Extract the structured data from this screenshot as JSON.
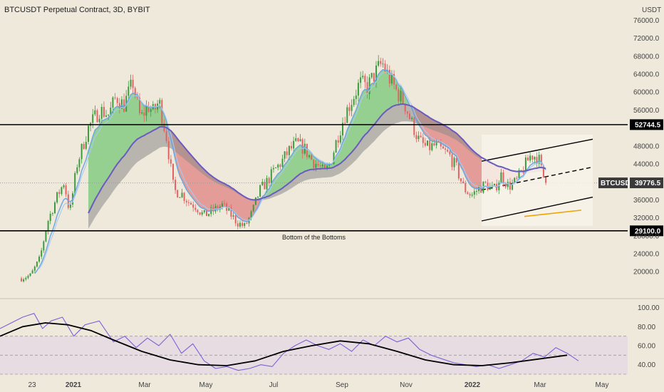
{
  "chart_data": {
    "type": "candlestick",
    "title": "BTCUSDT Perpetual Contract, 3D, BYBIT",
    "currency": "USDT",
    "ticker": "BTCUSDT",
    "last_price": "39776.5",
    "price_axis": {
      "ylim": [
        14000,
        80500
      ],
      "ticks": [
        "76000.0",
        "72000.0",
        "68000.0",
        "64000.0",
        "60000.0",
        "56000.0",
        "48000.0",
        "44000.0",
        "36000.0",
        "32000.0",
        "28000.0",
        "24000.0",
        "20000.0"
      ]
    },
    "levels": [
      {
        "label": "52744.5",
        "value": 52744.5
      },
      {
        "label": "29100.0",
        "value": 29100
      }
    ],
    "annotation": "Bottom of the Bottoms",
    "x_axis_labels": [
      "23",
      "2021",
      "Mar",
      "May",
      "Jul",
      "Sep",
      "Nov",
      "2022",
      "Mar",
      "May"
    ],
    "price_path": [
      {
        "t": 0.0,
        "p": 18500
      },
      {
        "t": 0.05,
        "p": 19200
      },
      {
        "t": 0.1,
        "p": 23000
      },
      {
        "t": 0.14,
        "p": 31000
      },
      {
        "t": 0.19,
        "p": 36500
      },
      {
        "t": 0.23,
        "p": 40000
      },
      {
        "t": 0.26,
        "p": 33000
      },
      {
        "t": 0.3,
        "p": 44000
      },
      {
        "t": 0.36,
        "p": 52000
      },
      {
        "t": 0.42,
        "p": 56000
      },
      {
        "t": 0.47,
        "p": 55000
      },
      {
        "t": 0.51,
        "p": 59000
      },
      {
        "t": 0.55,
        "p": 57000
      },
      {
        "t": 0.6,
        "p": 62000
      },
      {
        "t": 0.64,
        "p": 54000
      },
      {
        "t": 0.68,
        "p": 57000
      },
      {
        "t": 0.71,
        "p": 55500
      },
      {
        "t": 0.74,
        "p": 58000
      },
      {
        "t": 0.78,
        "p": 50000
      },
      {
        "t": 0.82,
        "p": 38000
      },
      {
        "t": 0.86,
        "p": 37500
      },
      {
        "t": 0.9,
        "p": 35500
      },
      {
        "t": 0.94,
        "p": 34500
      },
      {
        "t": 0.98,
        "p": 32500
      },
      {
        "t": 1.03,
        "p": 33500
      },
      {
        "t": 1.08,
        "p": 34800
      },
      {
        "t": 1.12,
        "p": 33000
      },
      {
        "t": 1.16,
        "p": 31000
      },
      {
        "t": 1.2,
        "p": 30000
      },
      {
        "t": 1.24,
        "p": 33000
      },
      {
        "t": 1.28,
        "p": 38000
      },
      {
        "t": 1.32,
        "p": 40000
      },
      {
        "t": 1.36,
        "p": 42500
      },
      {
        "t": 1.4,
        "p": 44500
      },
      {
        "t": 1.44,
        "p": 47000
      },
      {
        "t": 1.48,
        "p": 48500
      },
      {
        "t": 1.52,
        "p": 47500
      },
      {
        "t": 1.56,
        "p": 45000
      },
      {
        "t": 1.6,
        "p": 43500
      },
      {
        "t": 1.63,
        "p": 42000
      },
      {
        "t": 1.66,
        "p": 44000
      },
      {
        "t": 1.7,
        "p": 50000
      },
      {
        "t": 1.74,
        "p": 55000
      },
      {
        "t": 1.78,
        "p": 58500
      },
      {
        "t": 1.82,
        "p": 62000
      },
      {
        "t": 1.86,
        "p": 61000
      },
      {
        "t": 1.9,
        "p": 64000
      },
      {
        "t": 1.94,
        "p": 66500
      },
      {
        "t": 1.98,
        "p": 63000
      },
      {
        "t": 2.02,
        "p": 60000
      },
      {
        "t": 2.06,
        "p": 57500
      },
      {
        "t": 2.1,
        "p": 53000
      },
      {
        "t": 2.14,
        "p": 49000
      },
      {
        "t": 2.18,
        "p": 47500
      },
      {
        "t": 2.22,
        "p": 48000
      },
      {
        "t": 2.26,
        "p": 47000
      },
      {
        "t": 2.3,
        "p": 46000
      },
      {
        "t": 2.34,
        "p": 43000
      },
      {
        "t": 2.38,
        "p": 38500
      },
      {
        "t": 2.42,
        "p": 37000
      },
      {
        "t": 2.46,
        "p": 38500
      },
      {
        "t": 2.5,
        "p": 39500
      },
      {
        "t": 2.54,
        "p": 38000
      },
      {
        "t": 2.58,
        "p": 41500
      },
      {
        "t": 2.62,
        "p": 39000
      },
      {
        "t": 2.66,
        "p": 40000
      },
      {
        "t": 2.7,
        "p": 43000
      },
      {
        "t": 2.74,
        "p": 46000
      },
      {
        "t": 2.78,
        "p": 45500
      },
      {
        "t": 2.8,
        "p": 42000
      },
      {
        "t": 2.82,
        "p": 39776.5
      }
    ],
    "rsi_axis": {
      "ylim": [
        30,
        105
      ],
      "ticks": [
        "100.00",
        "80.00",
        "60.00",
        "40.00"
      ],
      "band": [
        30,
        70
      ],
      "midline": 50
    },
    "rsi_path": [
      {
        "t": 0.0,
        "p": 78
      },
      {
        "t": 0.04,
        "p": 84
      },
      {
        "t": 0.08,
        "p": 90
      },
      {
        "t": 0.12,
        "p": 94
      },
      {
        "t": 0.15,
        "p": 78
      },
      {
        "t": 0.18,
        "p": 86
      },
      {
        "t": 0.22,
        "p": 90
      },
      {
        "t": 0.26,
        "p": 70
      },
      {
        "t": 0.3,
        "p": 82
      },
      {
        "t": 0.35,
        "p": 86
      },
      {
        "t": 0.4,
        "p": 64
      },
      {
        "t": 0.44,
        "p": 70
      },
      {
        "t": 0.48,
        "p": 58
      },
      {
        "t": 0.52,
        "p": 68
      },
      {
        "t": 0.56,
        "p": 60
      },
      {
        "t": 0.6,
        "p": 72
      },
      {
        "t": 0.64,
        "p": 52
      },
      {
        "t": 0.68,
        "p": 62
      },
      {
        "t": 0.72,
        "p": 44
      },
      {
        "t": 0.76,
        "p": 36
      },
      {
        "t": 0.8,
        "p": 38
      },
      {
        "t": 0.84,
        "p": 34
      },
      {
        "t": 0.88,
        "p": 36
      },
      {
        "t": 0.92,
        "p": 40
      },
      {
        "t": 0.96,
        "p": 38
      },
      {
        "t": 1.0,
        "p": 52
      },
      {
        "t": 1.04,
        "p": 60
      },
      {
        "t": 1.08,
        "p": 66
      },
      {
        "t": 1.12,
        "p": 60
      },
      {
        "t": 1.16,
        "p": 56
      },
      {
        "t": 1.2,
        "p": 62
      },
      {
        "t": 1.24,
        "p": 54
      },
      {
        "t": 1.28,
        "p": 66
      },
      {
        "t": 1.32,
        "p": 60
      },
      {
        "t": 1.36,
        "p": 70
      },
      {
        "t": 1.4,
        "p": 64
      },
      {
        "t": 1.44,
        "p": 68
      },
      {
        "t": 1.48,
        "p": 56
      },
      {
        "t": 1.52,
        "p": 50
      },
      {
        "t": 1.56,
        "p": 46
      },
      {
        "t": 1.6,
        "p": 42
      },
      {
        "t": 1.64,
        "p": 40
      },
      {
        "t": 1.68,
        "p": 38
      },
      {
        "t": 1.72,
        "p": 40
      },
      {
        "t": 1.76,
        "p": 36
      },
      {
        "t": 1.8,
        "p": 40
      },
      {
        "t": 1.84,
        "p": 44
      },
      {
        "t": 1.88,
        "p": 52
      },
      {
        "t": 1.92,
        "p": 48
      },
      {
        "t": 1.96,
        "p": 58
      },
      {
        "t": 2.0,
        "p": 52
      },
      {
        "t": 2.04,
        "p": 44
      }
    ],
    "rsi_ma_path": [
      {
        "t": 0.0,
        "p": 70
      },
      {
        "t": 0.08,
        "p": 80
      },
      {
        "t": 0.16,
        "p": 84
      },
      {
        "t": 0.24,
        "p": 82
      },
      {
        "t": 0.32,
        "p": 76
      },
      {
        "t": 0.4,
        "p": 66
      },
      {
        "t": 0.5,
        "p": 54
      },
      {
        "t": 0.6,
        "p": 45
      },
      {
        "t": 0.7,
        "p": 40
      },
      {
        "t": 0.8,
        "p": 39
      },
      {
        "t": 0.9,
        "p": 44
      },
      {
        "t": 1.0,
        "p": 54
      },
      {
        "t": 1.1,
        "p": 60
      },
      {
        "t": 1.2,
        "p": 65
      },
      {
        "t": 1.3,
        "p": 62
      },
      {
        "t": 1.4,
        "p": 54
      },
      {
        "t": 1.5,
        "p": 45
      },
      {
        "t": 1.6,
        "p": 40
      },
      {
        "t": 1.7,
        "p": 39
      },
      {
        "t": 1.8,
        "p": 42
      },
      {
        "t": 1.9,
        "p": 46
      },
      {
        "t": 2.0,
        "p": 50
      }
    ]
  },
  "colors": {
    "background": "#efe9dc",
    "bull": "#3d9a3d",
    "bear": "#e06363",
    "fill_green": "#6fc46f",
    "fill_gray": "#8b8b8b",
    "fill_red": "#e07b7b",
    "ema_fast": "#6aa7e0",
    "ema_slow": "#6b5bbf",
    "rsi_line": "#7b63d6",
    "rsi_band": "#e3d3e8",
    "level_line": "#000000",
    "last_price_tag": "#3a3a3a",
    "orange_line": "#f0a400"
  }
}
